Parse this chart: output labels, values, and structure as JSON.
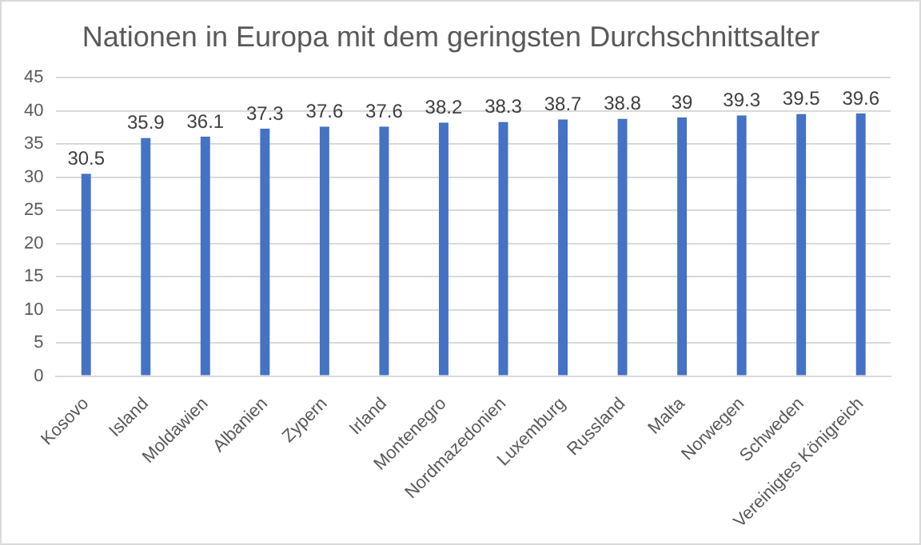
{
  "chart_data": {
    "type": "bar",
    "title": "Nationen in Europa mit dem geringsten Durchschnittsalter",
    "categories": [
      "Kosovo",
      "Island",
      "Moldawien",
      "Albanien",
      "Zypern",
      "Irland",
      "Montenegro",
      "Nordmazedonien",
      "Luxemburg",
      "Russland",
      "Malta",
      "Norwegen",
      "Schweden",
      "Vereinigtes Königreich"
    ],
    "values": [
      30.5,
      35.9,
      36.1,
      37.3,
      37.6,
      37.6,
      38.2,
      38.3,
      38.7,
      38.8,
      39,
      39.3,
      39.5,
      39.6
    ],
    "color": "#4472c4",
    "ylim": [
      0,
      45
    ],
    "yticks": [
      0,
      5,
      10,
      15,
      20,
      25,
      30,
      35,
      40,
      45
    ],
    "grid": "y",
    "data_labels": true
  }
}
